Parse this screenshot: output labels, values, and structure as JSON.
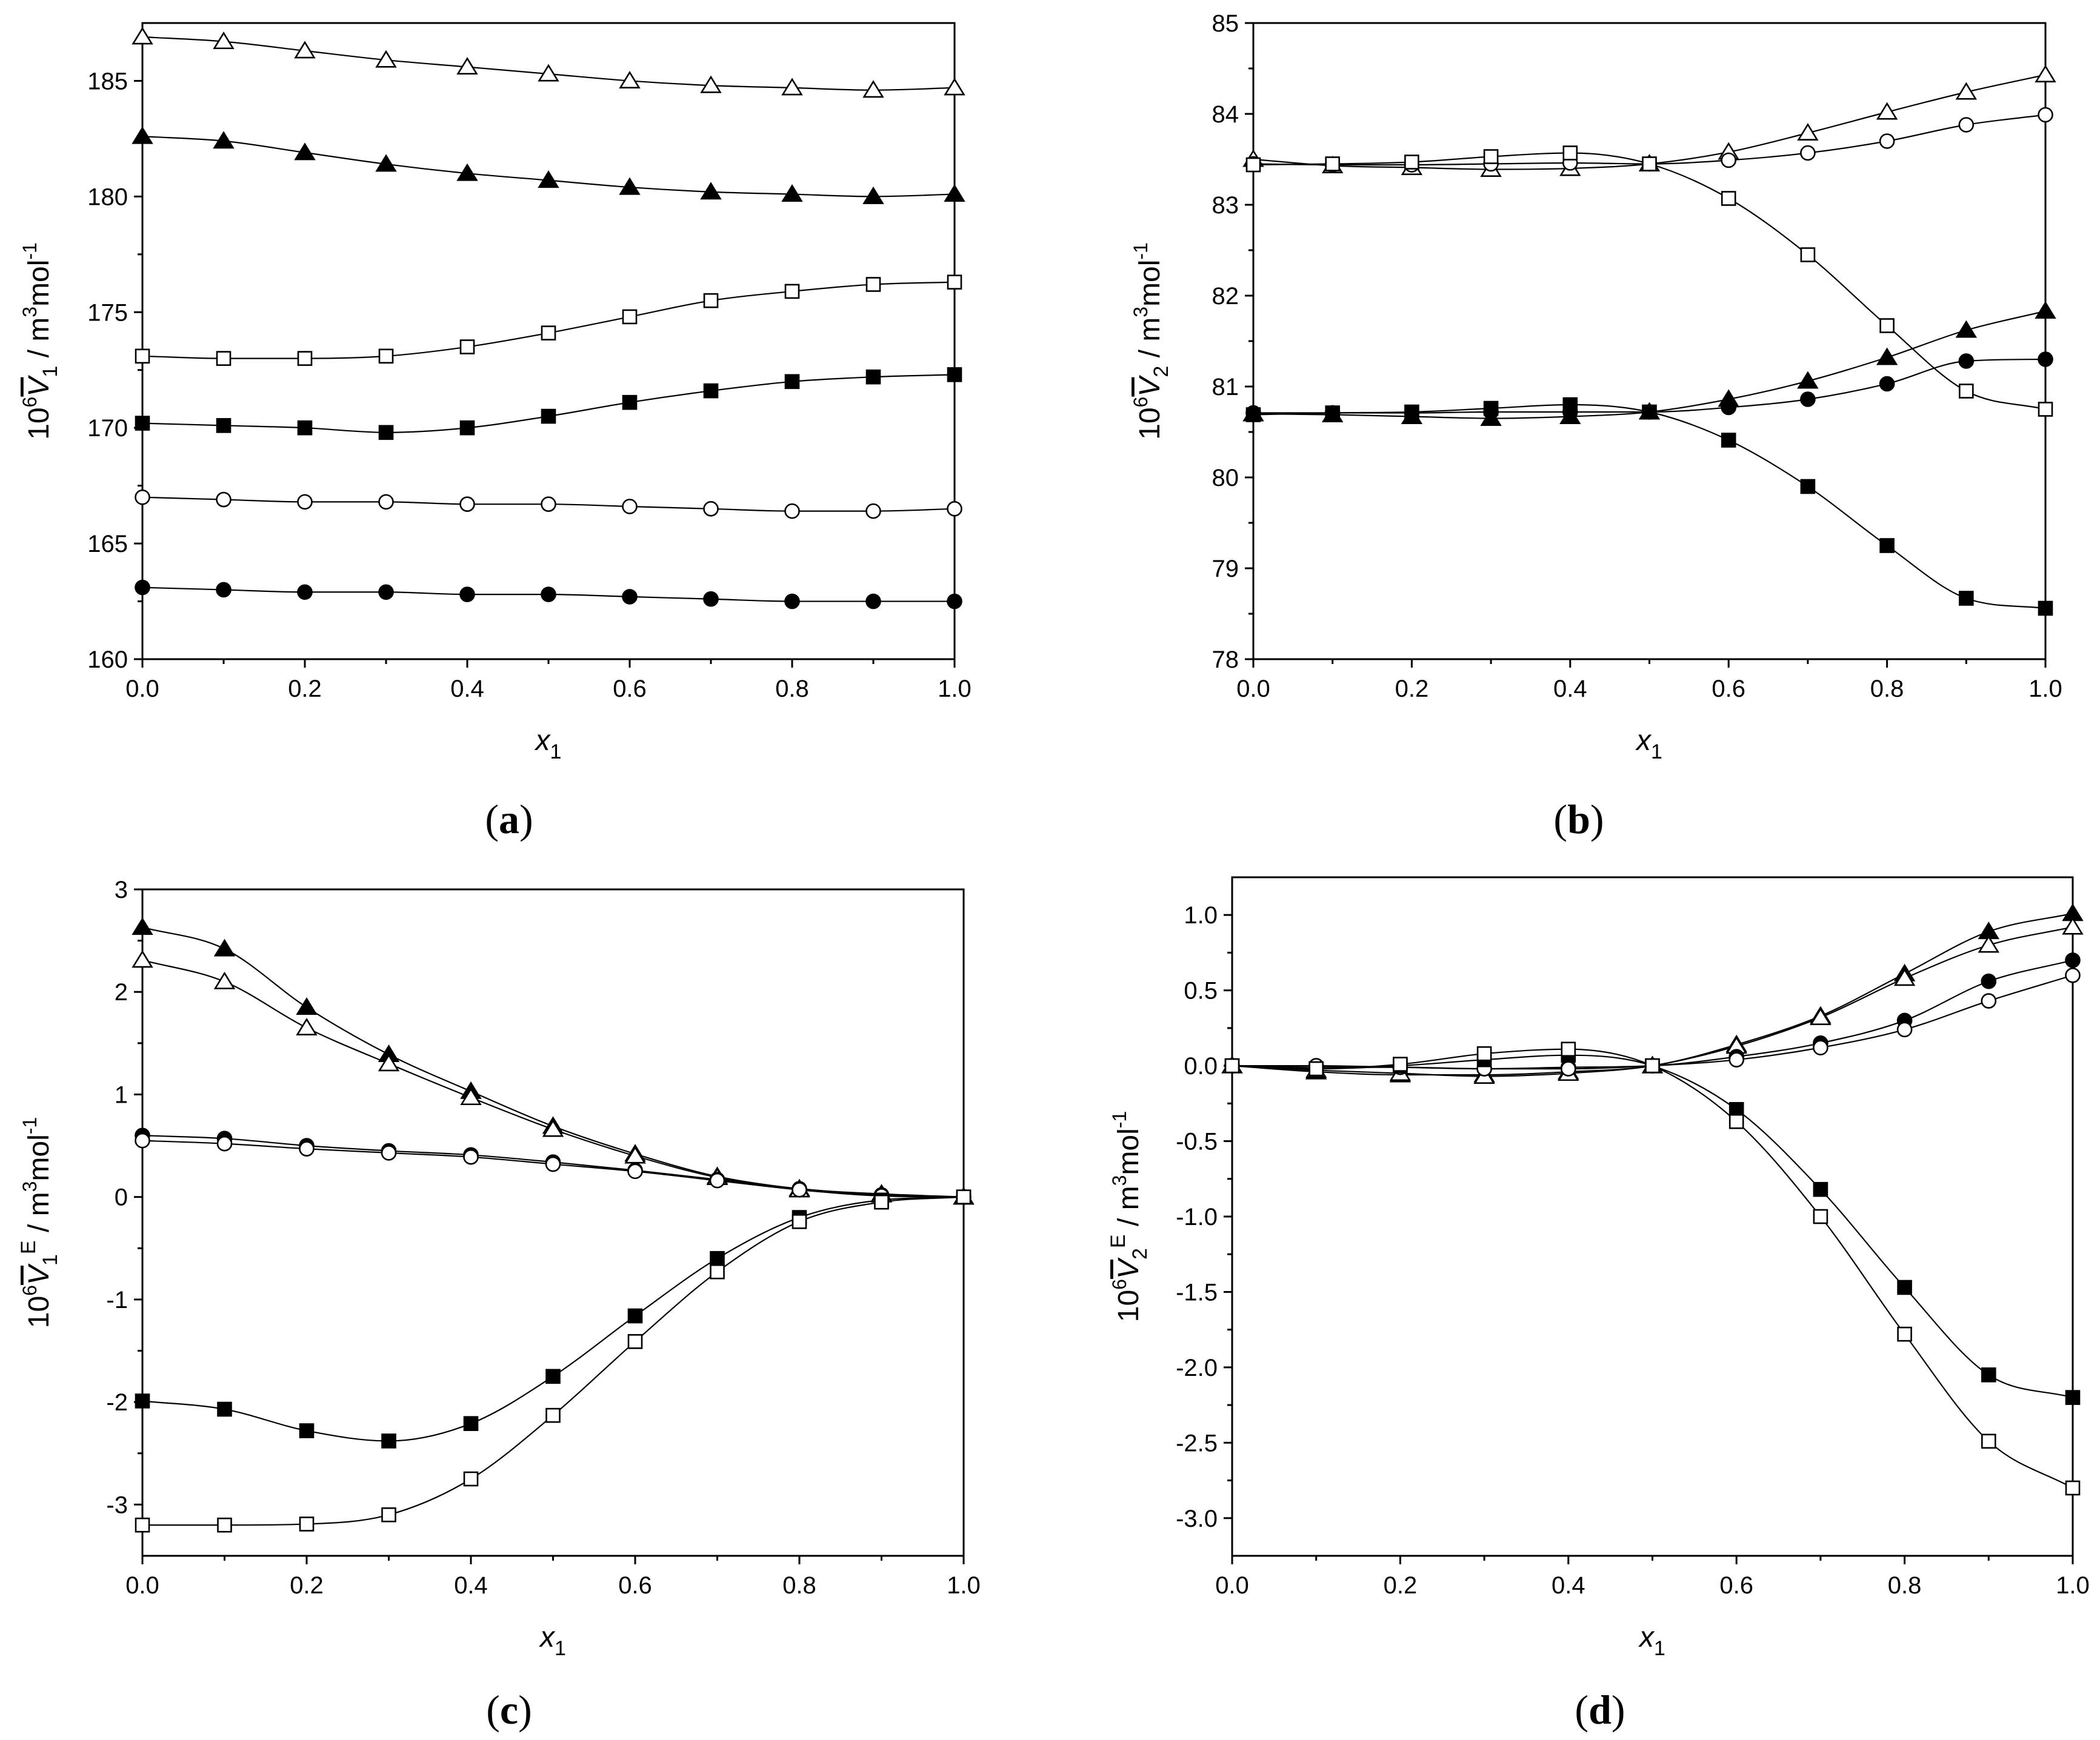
{
  "chart_data": [
    {
      "id": "a",
      "type": "scatter",
      "panel_label": "a",
      "xlabel": "x",
      "xlabel_sub": "1",
      "ylabel": {
        "prefix": "10",
        "prefix_sup": "6",
        "symbol": "V",
        "sub": "1",
        "sup": "",
        "unit_1": " / m",
        "unit_sup": "3",
        "unit_2": "mol",
        "unit_sup2": "-1"
      },
      "xlim": [
        0,
        1
      ],
      "ylim": [
        160,
        187.5
      ],
      "xticks": [
        0.0,
        0.2,
        0.4,
        0.6,
        0.8,
        1.0
      ],
      "xtick_labels": [
        "0.0",
        "0.2",
        "0.4",
        "0.6",
        "0.8",
        "1.0"
      ],
      "yticks": [
        160,
        165,
        170,
        175,
        180,
        185
      ],
      "ytick_labels": [
        "160",
        "165",
        "170",
        "175",
        "180",
        "185"
      ],
      "x": [
        0.0,
        0.1,
        0.2,
        0.3,
        0.4,
        0.5,
        0.6,
        0.7,
        0.8,
        0.9,
        1.0
      ],
      "series": [
        {
          "name": "open-triangle",
          "marker": "triangle",
          "filled": false,
          "values": [
            186.9,
            186.7,
            186.3,
            185.9,
            185.6,
            185.3,
            185.0,
            184.8,
            184.7,
            184.6,
            184.7
          ]
        },
        {
          "name": "filled-triangle",
          "marker": "triangle",
          "filled": true,
          "values": [
            182.6,
            182.4,
            181.9,
            181.4,
            181.0,
            180.7,
            180.4,
            180.2,
            180.1,
            180.0,
            180.1
          ]
        },
        {
          "name": "open-square",
          "marker": "square",
          "filled": false,
          "values": [
            173.1,
            173.0,
            173.0,
            173.1,
            173.5,
            174.1,
            174.8,
            175.5,
            175.9,
            176.2,
            176.3
          ]
        },
        {
          "name": "filled-square",
          "marker": "square",
          "filled": true,
          "values": [
            170.2,
            170.1,
            170.0,
            169.8,
            170.0,
            170.5,
            171.1,
            171.6,
            172.0,
            172.2,
            172.3
          ]
        },
        {
          "name": "open-circle",
          "marker": "circle",
          "filled": false,
          "values": [
            167.0,
            166.9,
            166.8,
            166.8,
            166.7,
            166.7,
            166.6,
            166.5,
            166.4,
            166.4,
            166.5
          ]
        },
        {
          "name": "filled-circle",
          "marker": "circle",
          "filled": true,
          "values": [
            163.1,
            163.0,
            162.9,
            162.9,
            162.8,
            162.8,
            162.7,
            162.6,
            162.5,
            162.5,
            162.5
          ]
        }
      ]
    },
    {
      "id": "b",
      "type": "scatter",
      "panel_label": "b",
      "xlabel": "x",
      "xlabel_sub": "1",
      "ylabel": {
        "prefix": "10",
        "prefix_sup": "6",
        "symbol": "V",
        "sub": "2",
        "sup": "",
        "unit_1": " / m",
        "unit_sup": "3",
        "unit_2": "mol",
        "unit_sup2": "-1"
      },
      "xlim": [
        0,
        1
      ],
      "ylim": [
        78,
        85
      ],
      "xticks": [
        0.0,
        0.2,
        0.4,
        0.6,
        0.8,
        1.0
      ],
      "xtick_labels": [
        "0.0",
        "0.2",
        "0.4",
        "0.6",
        "0.8",
        "1.0"
      ],
      "yticks": [
        78,
        79,
        80,
        81,
        82,
        83,
        84,
        85
      ],
      "ytick_labels": [
        "78",
        "79",
        "80",
        "81",
        "82",
        "83",
        "84",
        "85"
      ],
      "x": [
        0.0,
        0.1,
        0.2,
        0.3,
        0.4,
        0.5,
        0.6,
        0.7,
        0.8,
        0.9,
        1.0
      ],
      "series": [
        {
          "name": "open-triangle",
          "marker": "triangle",
          "filled": false,
          "values": [
            83.5,
            83.43,
            83.41,
            83.39,
            83.4,
            83.45,
            83.58,
            83.79,
            84.02,
            84.24,
            84.43
          ]
        },
        {
          "name": "open-circle",
          "marker": "circle",
          "filled": false,
          "values": [
            83.45,
            83.44,
            83.44,
            83.45,
            83.46,
            83.45,
            83.49,
            83.57,
            83.7,
            83.88,
            83.99
          ]
        },
        {
          "name": "open-square",
          "marker": "square",
          "filled": false,
          "values": [
            83.44,
            83.45,
            83.47,
            83.53,
            83.57,
            83.45,
            83.07,
            82.45,
            81.67,
            80.95,
            80.75
          ]
        },
        {
          "name": "filled-triangle",
          "marker": "triangle",
          "filled": true,
          "values": [
            80.7,
            80.69,
            80.67,
            80.65,
            80.67,
            80.72,
            80.86,
            81.06,
            81.32,
            81.62,
            81.83
          ]
        },
        {
          "name": "filled-circle",
          "marker": "circle",
          "filled": true,
          "values": [
            80.71,
            80.71,
            80.71,
            80.72,
            80.72,
            80.72,
            80.77,
            80.86,
            81.03,
            81.28,
            81.3
          ]
        },
        {
          "name": "filled-square",
          "marker": "square",
          "filled": true,
          "values": [
            80.69,
            80.71,
            80.72,
            80.76,
            80.8,
            80.72,
            80.41,
            79.9,
            79.25,
            78.67,
            78.56
          ]
        }
      ]
    },
    {
      "id": "c",
      "type": "scatter",
      "panel_label": "c",
      "xlabel": "x",
      "xlabel_sub": "1",
      "ylabel": {
        "prefix": "10",
        "prefix_sup": "6",
        "symbol": "V",
        "sub": "1",
        "sup": "E",
        "unit_1": " / m",
        "unit_sup": "3",
        "unit_2": "mol",
        "unit_sup2": "-1"
      },
      "xlim": [
        0,
        1
      ],
      "ylim": [
        -3.5,
        3
      ],
      "xticks": [
        0.0,
        0.2,
        0.4,
        0.6,
        0.8,
        1.0
      ],
      "xtick_labels": [
        "0.0",
        "0.2",
        "0.4",
        "0.6",
        "0.8",
        "1.0"
      ],
      "yticks": [
        -3,
        -2,
        -1,
        0,
        1,
        2,
        3
      ],
      "ytick_labels": [
        "-3",
        "-2",
        "-1",
        "0",
        "1",
        "2",
        "3"
      ],
      "x": [
        0.0,
        0.1,
        0.2,
        0.3,
        0.4,
        0.5,
        0.6,
        0.7,
        0.8,
        0.9,
        1.0
      ],
      "series": [
        {
          "name": "filled-triangle",
          "marker": "triangle",
          "filled": true,
          "values": [
            2.63,
            2.42,
            1.85,
            1.39,
            1.03,
            0.69,
            0.42,
            0.2,
            0.08,
            0.03,
            0.0
          ]
        },
        {
          "name": "open-triangle",
          "marker": "triangle",
          "filled": false,
          "values": [
            2.31,
            2.1,
            1.65,
            1.3,
            0.97,
            0.66,
            0.4,
            0.19,
            0.07,
            0.02,
            0.0
          ]
        },
        {
          "name": "filled-circle",
          "marker": "circle",
          "filled": true,
          "values": [
            0.6,
            0.57,
            0.5,
            0.45,
            0.41,
            0.34,
            0.26,
            0.17,
            0.08,
            0.02,
            0.0
          ]
        },
        {
          "name": "open-circle",
          "marker": "circle",
          "filled": false,
          "values": [
            0.55,
            0.52,
            0.47,
            0.43,
            0.39,
            0.32,
            0.25,
            0.16,
            0.07,
            0.01,
            0.0
          ]
        },
        {
          "name": "filled-square",
          "marker": "square",
          "filled": true,
          "values": [
            -1.99,
            -2.07,
            -2.28,
            -2.38,
            -2.21,
            -1.75,
            -1.16,
            -0.6,
            -0.2,
            -0.03,
            0.0
          ]
        },
        {
          "name": "open-square",
          "marker": "square",
          "filled": false,
          "values": [
            -3.2,
            -3.2,
            -3.19,
            -3.1,
            -2.75,
            -2.13,
            -1.41,
            -0.73,
            -0.24,
            -0.05,
            0.0
          ]
        }
      ]
    },
    {
      "id": "d",
      "type": "scatter",
      "panel_label": "d",
      "xlabel": "x",
      "xlabel_sub": "1",
      "ylabel": {
        "prefix": "10",
        "prefix_sup": "6",
        "symbol": "V",
        "sub": "2",
        "sup": "E",
        "unit_1": " / m",
        "unit_sup": "3",
        "unit_2": "mol",
        "unit_sup2": "-1"
      },
      "xlim": [
        0,
        1
      ],
      "ylim": [
        -3.25,
        1.25
      ],
      "xticks": [
        0.0,
        0.2,
        0.4,
        0.6,
        0.8,
        1.0
      ],
      "xtick_labels": [
        "0.0",
        "0.2",
        "0.4",
        "0.6",
        "0.8",
        "1.0"
      ],
      "yticks": [
        -3.0,
        -2.5,
        -2.0,
        -1.5,
        -1.0,
        -0.5,
        0.0,
        0.5,
        1.0
      ],
      "ytick_labels": [
        "-3.0",
        "-2.5",
        "-2.0",
        "-1.5",
        "-1.0",
        "-0.5",
        "0.0",
        "0.5",
        "1.0"
      ],
      "x": [
        0.0,
        0.1,
        0.2,
        0.3,
        0.4,
        0.5,
        0.6,
        0.7,
        0.8,
        0.9,
        1.0
      ],
      "series": [
        {
          "name": "filled-triangle",
          "marker": "triangle",
          "filled": true,
          "values": [
            0.0,
            -0.04,
            -0.06,
            -0.06,
            -0.04,
            0.0,
            0.14,
            0.33,
            0.61,
            0.89,
            1.01
          ]
        },
        {
          "name": "open-triangle",
          "marker": "triangle",
          "filled": false,
          "values": [
            0.0,
            -0.03,
            -0.05,
            -0.07,
            -0.05,
            0.0,
            0.13,
            0.32,
            0.58,
            0.8,
            0.92
          ]
        },
        {
          "name": "filled-circle",
          "marker": "circle",
          "filled": true,
          "values": [
            0.0,
            -0.01,
            -0.01,
            -0.02,
            -0.01,
            0.0,
            0.06,
            0.15,
            0.3,
            0.56,
            0.7
          ]
        },
        {
          "name": "open-circle",
          "marker": "circle",
          "filled": false,
          "values": [
            0.0,
            0.0,
            -0.01,
            -0.02,
            -0.02,
            0.0,
            0.04,
            0.12,
            0.24,
            0.43,
            0.6
          ]
        },
        {
          "name": "filled-square",
          "marker": "square",
          "filled": true,
          "values": [
            0.0,
            -0.02,
            0.0,
            0.04,
            0.07,
            0.0,
            -0.29,
            -0.82,
            -1.47,
            -2.05,
            -2.2
          ]
        },
        {
          "name": "open-square",
          "marker": "square",
          "filled": false,
          "values": [
            0.0,
            -0.02,
            0.01,
            0.08,
            0.11,
            0.0,
            -0.37,
            -1.0,
            -1.78,
            -2.49,
            -2.8
          ]
        }
      ]
    }
  ]
}
